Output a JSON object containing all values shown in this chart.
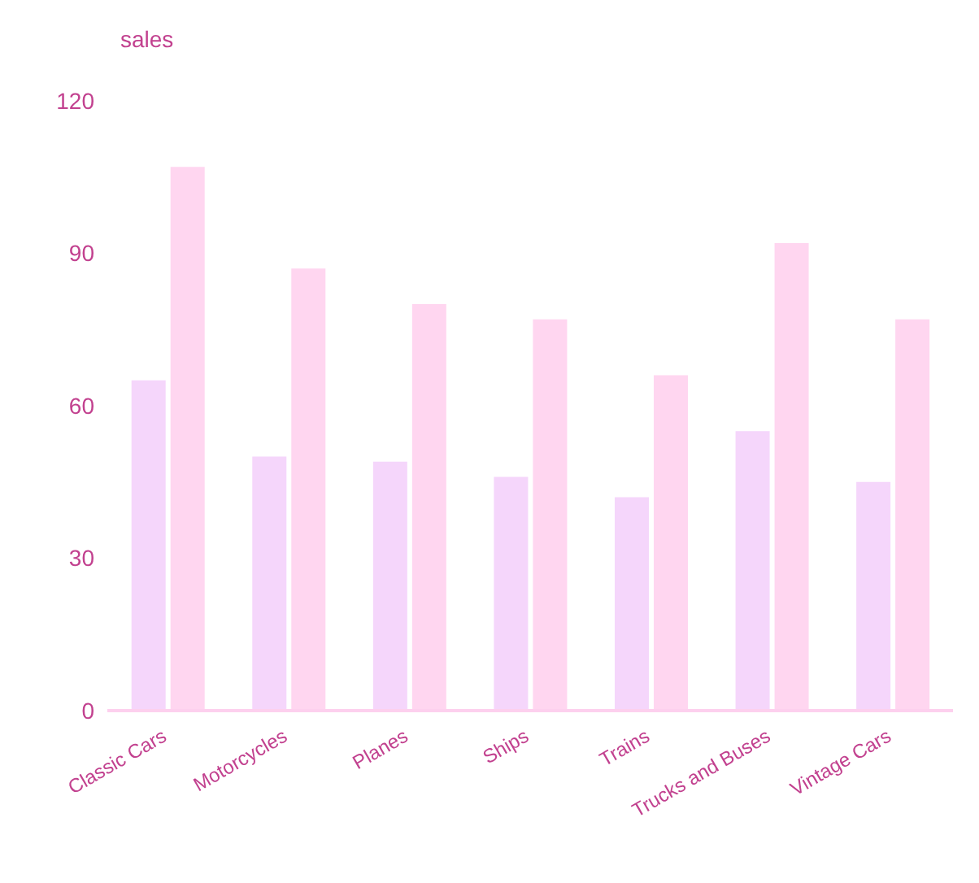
{
  "chart_data": {
    "type": "bar",
    "ylabel": "sales",
    "categories": [
      "Classic Cars",
      "Motorcycles",
      "Planes",
      "Ships",
      "Trains",
      "Trucks and Buses",
      "Vintage Cars"
    ],
    "series": [
      {
        "color": "#f5d6fb",
        "values": [
          65,
          50,
          49,
          46,
          42,
          55,
          45
        ]
      },
      {
        "color": "#ffd6f0",
        "values": [
          107,
          87,
          80,
          77,
          66,
          92,
          77
        ]
      }
    ],
    "ylim": [
      0,
      120
    ],
    "yticks": [
      0,
      30,
      60,
      90,
      120
    ],
    "grid": false,
    "legend": false
  }
}
